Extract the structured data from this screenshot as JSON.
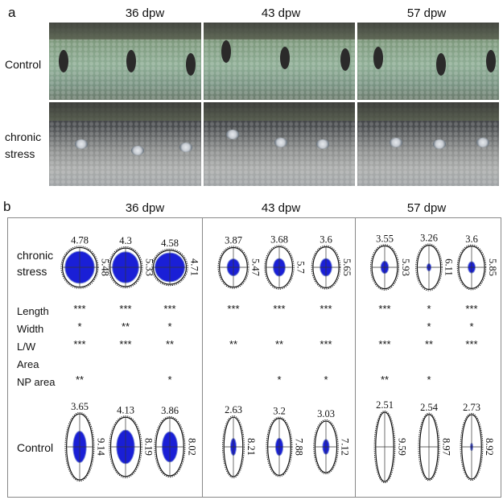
{
  "panel_a": {
    "letter": "a",
    "timepoints": [
      "36 dpw",
      "43 dpw",
      "57 dpw"
    ],
    "row_labels": {
      "control": "Control",
      "stress_line1": "chronic",
      "stress_line2": "stress"
    }
  },
  "panel_b": {
    "letter": "b",
    "timepoints": [
      "36 dpw",
      "43 dpw",
      "57 dpw"
    ],
    "row_labels": {
      "stress_line1": "chronic",
      "stress_line2": "stress",
      "control": "Control"
    },
    "metric_labels": [
      "Length",
      "Width",
      "L/W",
      "Area",
      "NP area"
    ],
    "groups": [
      {
        "stress": [
          {
            "width": "4.78",
            "length": "5.48",
            "fill": 0.85
          },
          {
            "width": "4.3",
            "length": "5.33",
            "fill": 0.85
          },
          {
            "width": "4.58",
            "length": "4.71",
            "fill": 0.9
          }
        ],
        "control": [
          {
            "width": "3.65",
            "length": "9.14",
            "fill": 0.5
          },
          {
            "width": "4.13",
            "length": "8.19",
            "fill": 0.6
          },
          {
            "width": "3.86",
            "length": "8.02",
            "fill": 0.55
          }
        ],
        "sig": [
          [
            "***",
            "***",
            "***"
          ],
          [
            "*",
            "**",
            "*"
          ],
          [
            "***",
            "***",
            "**"
          ],
          [
            "",
            "",
            ""
          ],
          [
            "**",
            "",
            "*"
          ]
        ]
      },
      {
        "stress": [
          {
            "width": "3.87",
            "length": "5.47",
            "fill": 0.45
          },
          {
            "width": "3.68",
            "length": "5.7",
            "fill": 0.45
          },
          {
            "width": "3.6",
            "length": "5.65",
            "fill": 0.45
          }
        ],
        "control": [
          {
            "width": "2.63",
            "length": "8.21",
            "fill": 0.3
          },
          {
            "width": "3.2",
            "length": "7.88",
            "fill": 0.32
          },
          {
            "width": "3.03",
            "length": "7.12",
            "fill": 0.3
          }
        ],
        "sig": [
          [
            "***",
            "***",
            "***"
          ],
          [
            "",
            "",
            ""
          ],
          [
            "**",
            "**",
            "***"
          ],
          [
            "",
            "",
            ""
          ],
          [
            "",
            "*",
            "*"
          ]
        ]
      },
      {
        "stress": [
          {
            "width": "3.55",
            "length": "5.93",
            "fill": 0.3
          },
          {
            "width": "3.26",
            "length": "6.11",
            "fill": 0.18
          },
          {
            "width": "3.6",
            "length": "5.85",
            "fill": 0.28
          }
        ],
        "control": [
          {
            "width": "2.51",
            "length": "9.59",
            "fill": 0
          },
          {
            "width": "2.54",
            "length": "8.97",
            "fill": 0
          },
          {
            "width": "2.73",
            "length": "8.92",
            "fill": 0.12
          }
        ],
        "sig": [
          [
            "***",
            "*",
            "***"
          ],
          [
            "",
            "*",
            "*"
          ],
          [
            "***",
            "**",
            "***"
          ],
          [
            "",
            "",
            ""
          ],
          [
            "**",
            "*",
            ""
          ]
        ]
      }
    ]
  },
  "colors": {
    "fill": "#1a1fd6",
    "outline": "#111111",
    "frame": "#888888"
  }
}
